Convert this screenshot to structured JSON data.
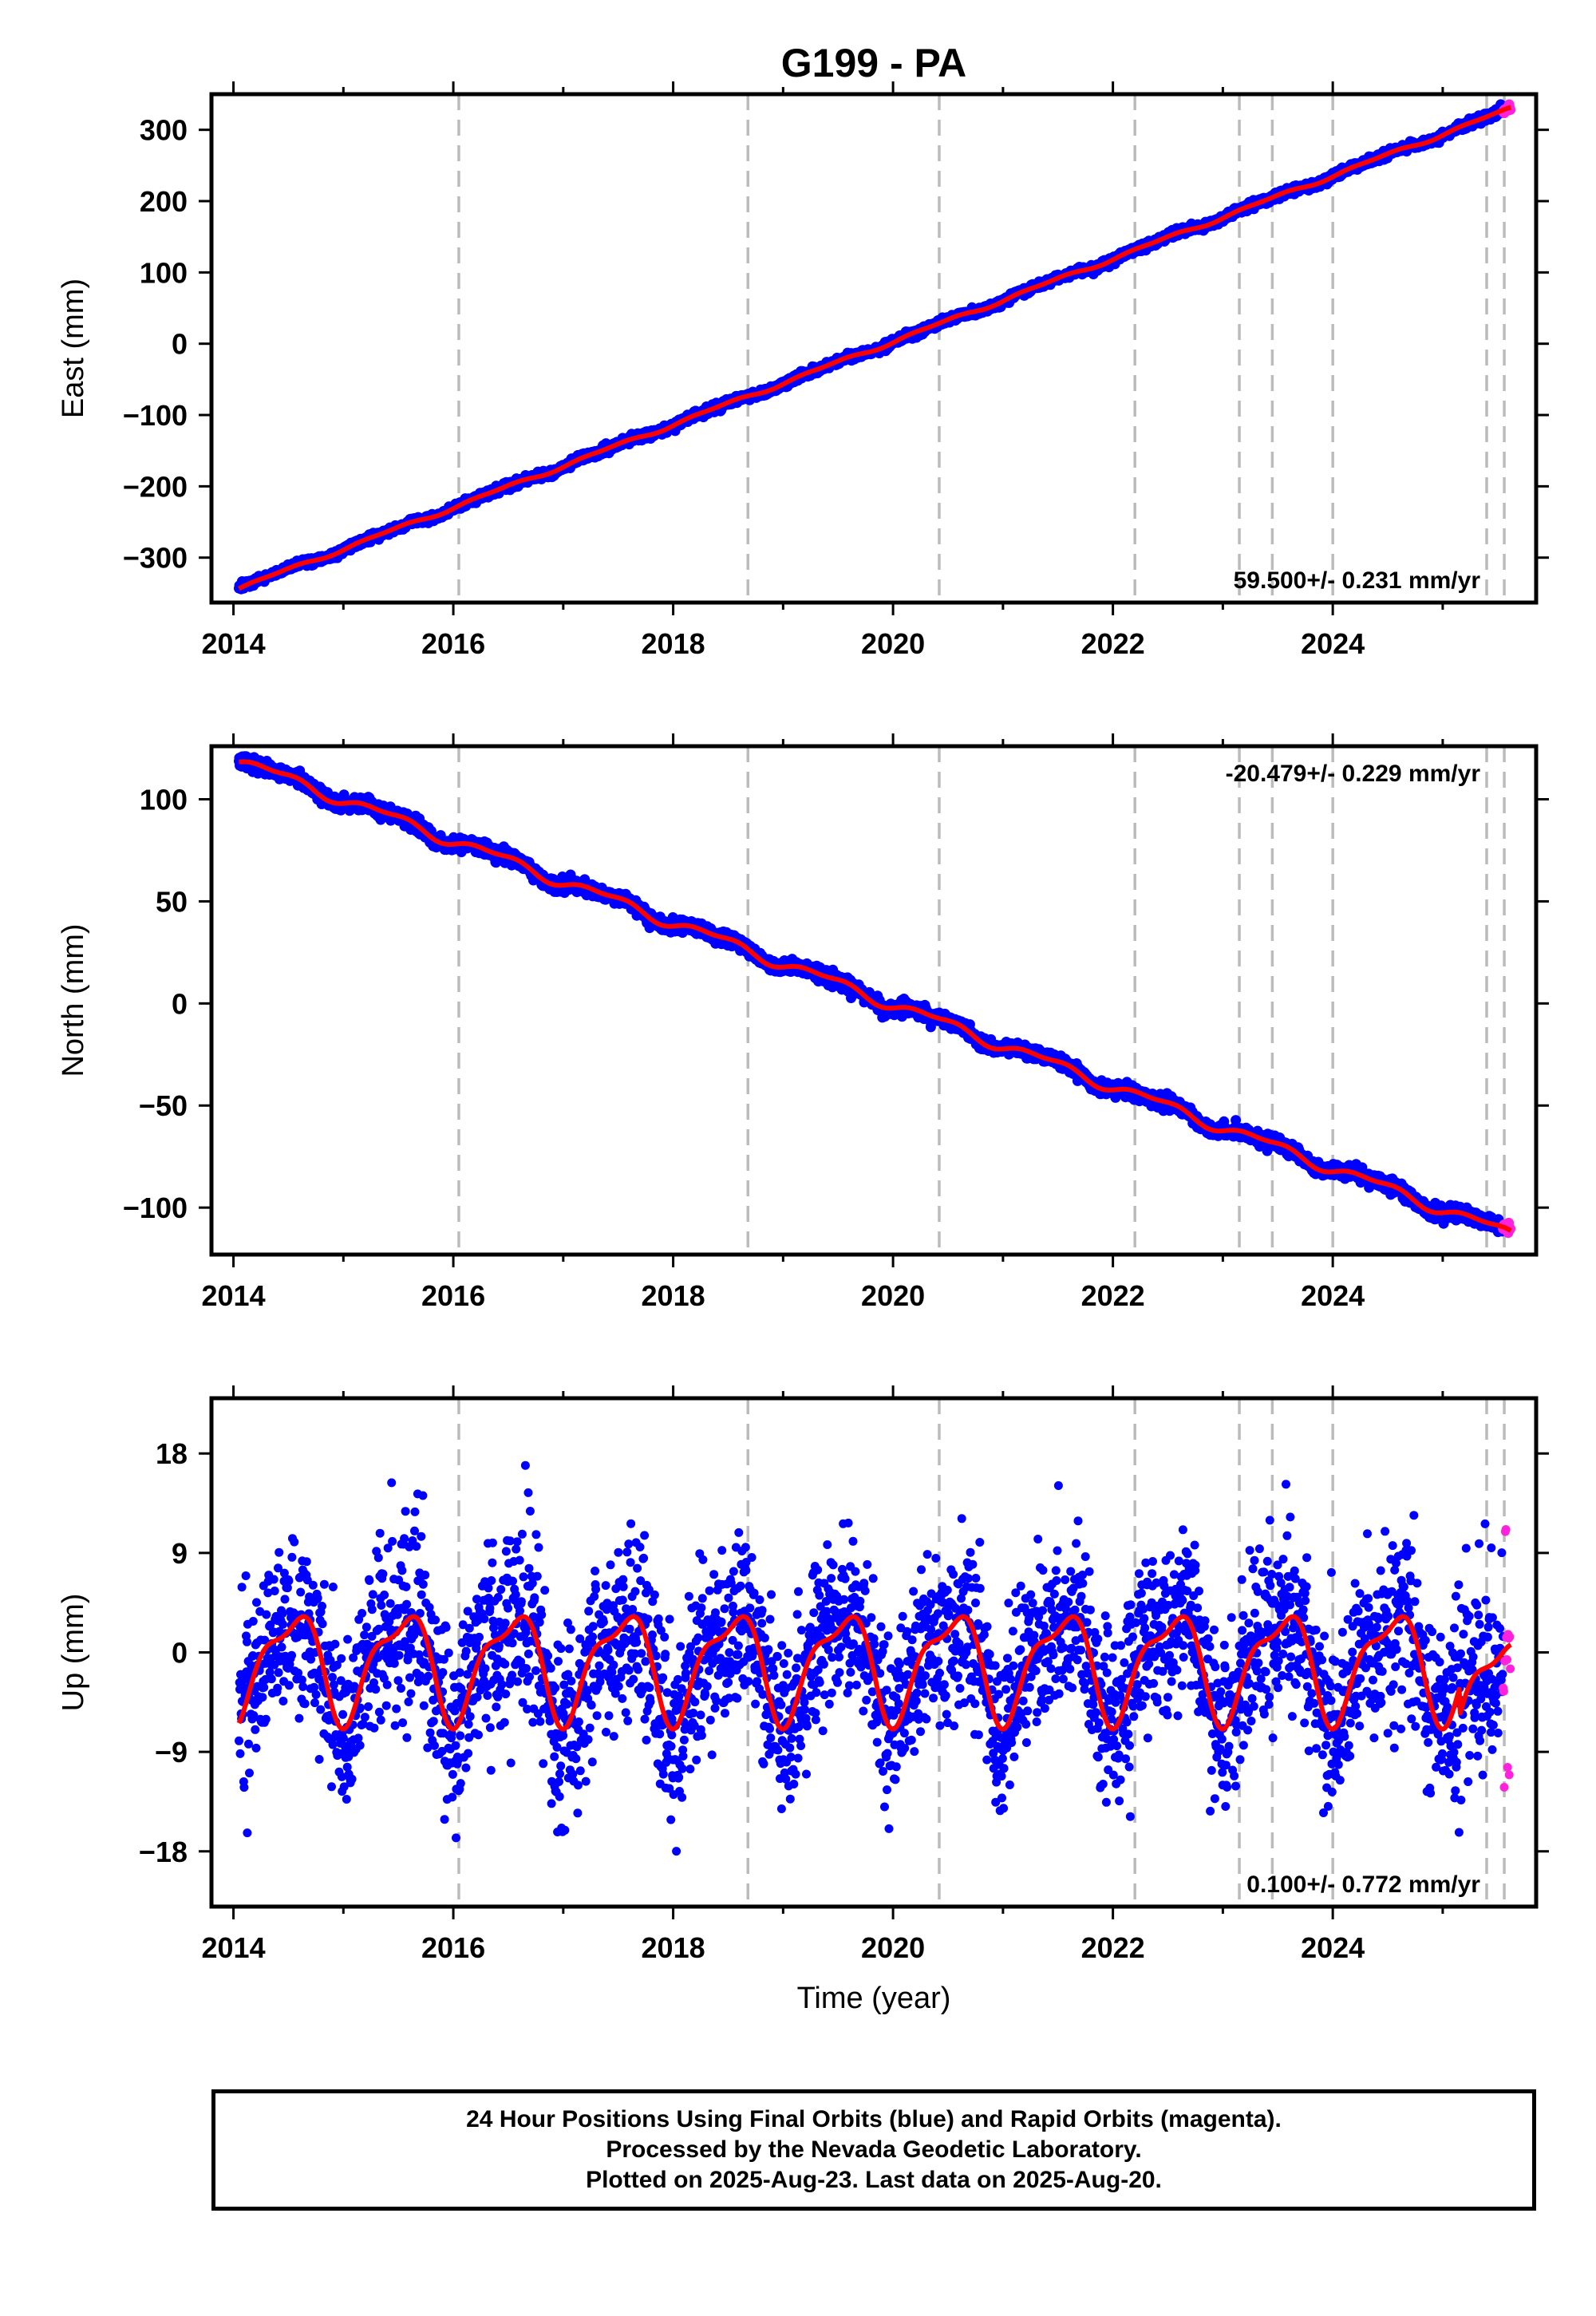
{
  "title": "G199 - PA",
  "x_axis_label": "Time (year)",
  "caption": [
    "24 Hour Positions Using Final Orbits (blue) and Rapid Orbits (magenta).",
    "Processed by the Nevada Geodetic Laboratory.",
    "Plotted on 2025-Aug-23. Last data on 2025-Aug-20."
  ],
  "colors": {
    "final_orbits": "#0000ff",
    "rapid_orbits": "#ff22dd",
    "model_fit": "#ff0000",
    "event_lines": "#bbbbbb"
  },
  "chart_data": [
    {
      "type": "scatter",
      "panel": "east",
      "ylabel": "East (mm)",
      "xlim": [
        2013.8,
        2025.85
      ],
      "ylim": [
        -363,
        350
      ],
      "xticks": [
        "2014",
        "2016",
        "2018",
        "2020",
        "2022",
        "2024"
      ],
      "yticks": [
        "−300",
        "−200",
        "−100",
        "0",
        "100",
        "200",
        "300"
      ],
      "rate_label": "59.500+/- 0.231 mm/yr",
      "rate_placement": "bottom-right",
      "trend": {
        "start": [
          2014.05,
          -343
        ],
        "end": [
          2025.62,
          330
        ]
      },
      "event_lines": [
        2016.05,
        2018.68,
        2020.42,
        2022.2,
        2023.15,
        2023.45,
        2024.0,
        2025.4,
        2025.56
      ],
      "series": [
        {
          "name": "Final Orbits",
          "color": "#0000ff",
          "x_range": [
            2014.05,
            2025.55
          ]
        },
        {
          "name": "Rapid Orbits",
          "color": "#ff22dd",
          "x_range": [
            2025.55,
            2025.62
          ]
        }
      ]
    },
    {
      "type": "scatter",
      "panel": "north",
      "ylabel": "North (mm)",
      "xlim": [
        2013.8,
        2025.85
      ],
      "ylim": [
        -123,
        126
      ],
      "xticks": [
        "2014",
        "2016",
        "2018",
        "2020",
        "2022",
        "2024"
      ],
      "yticks": [
        "100",
        "50",
        "0",
        "−50",
        "−100"
      ],
      "rate_label": "-20.479+/- 0.229 mm/yr",
      "rate_placement": "top-right",
      "trend": {
        "start": [
          2014.05,
          119
        ],
        "end": [
          2025.62,
          -113
        ]
      },
      "event_lines": [
        2016.05,
        2018.68,
        2020.42,
        2022.2,
        2023.15,
        2023.45,
        2024.0,
        2025.4,
        2025.56
      ],
      "series": [
        {
          "name": "Final Orbits",
          "color": "#0000ff",
          "x_range": [
            2014.05,
            2025.55
          ]
        },
        {
          "name": "Rapid Orbits",
          "color": "#ff22dd",
          "x_range": [
            2025.55,
            2025.62
          ]
        }
      ]
    },
    {
      "type": "scatter",
      "panel": "up",
      "ylabel": "Up (mm)",
      "xlim": [
        2013.8,
        2025.85
      ],
      "ylim": [
        -23,
        23
      ],
      "xticks": [
        "2014",
        "2016",
        "2018",
        "2020",
        "2022",
        "2024"
      ],
      "yticks": [
        "18",
        "9",
        "0",
        "−9",
        "−18"
      ],
      "rate_label": "0.100+/- 0.772 mm/yr",
      "rate_placement": "bottom-right",
      "seasonal_amplitude_mm": 4.5,
      "scatter_sd_mm": 4,
      "event_lines": [
        2016.05,
        2018.68,
        2020.42,
        2022.2,
        2023.15,
        2023.45,
        2024.0,
        2025.4,
        2025.56
      ],
      "series": [
        {
          "name": "Final Orbits",
          "color": "#0000ff",
          "x_range": [
            2014.05,
            2025.55
          ]
        },
        {
          "name": "Rapid Orbits",
          "color": "#ff22dd",
          "x_range": [
            2025.55,
            2025.62
          ]
        }
      ]
    }
  ]
}
